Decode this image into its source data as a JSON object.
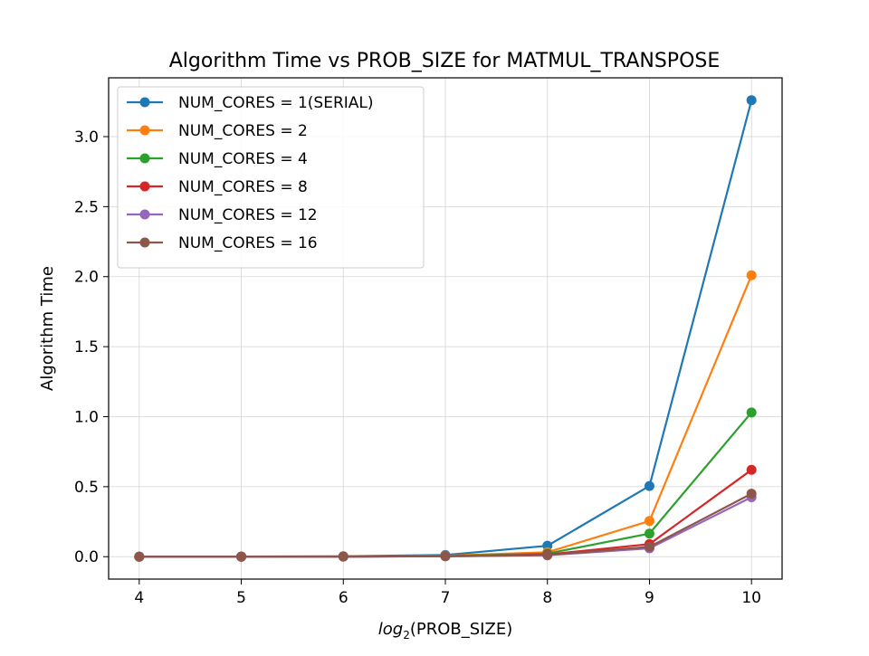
{
  "chart_data": {
    "type": "line",
    "title": "Algorithm Time vs PROB_SIZE for MATMUL_TRANSPOSE",
    "xlabel_base": "log",
    "xlabel_sub": "2",
    "xlabel_rest": "(PROB_SIZE)",
    "ylabel": "Algorithm Time",
    "x": [
      4,
      5,
      6,
      7,
      8,
      9,
      10
    ],
    "xlim": [
      3.7,
      10.3
    ],
    "ylim": [
      -0.16,
      3.42
    ],
    "xticks": [
      4,
      5,
      6,
      7,
      8,
      9,
      10
    ],
    "yticks": [
      0.0,
      0.5,
      1.0,
      1.5,
      2.0,
      2.5,
      3.0
    ],
    "ytick_labels": [
      "0.0",
      "0.5",
      "1.0",
      "1.5",
      "2.0",
      "2.5",
      "3.0"
    ],
    "grid": true,
    "legend_position": "top-left",
    "series": [
      {
        "name": "NUM_CORES = 1(SERIAL)",
        "color": "#1f77b4",
        "values": [
          0.0,
          0.001,
          0.003,
          0.012,
          0.078,
          0.505,
          3.26
        ]
      },
      {
        "name": "NUM_CORES = 2",
        "color": "#ff7f0e",
        "values": [
          0.0,
          0.001,
          0.002,
          0.007,
          0.032,
          0.255,
          2.01
        ]
      },
      {
        "name": "NUM_CORES = 4",
        "color": "#2ca02c",
        "values": [
          0.0,
          0.0,
          0.001,
          0.005,
          0.022,
          0.165,
          1.03
        ]
      },
      {
        "name": "NUM_CORES = 8",
        "color": "#d62728",
        "values": [
          0.0,
          0.0,
          0.001,
          0.004,
          0.016,
          0.09,
          0.62
        ]
      },
      {
        "name": "NUM_CORES = 12",
        "color": "#9467bd",
        "values": [
          0.0,
          0.0,
          0.001,
          0.003,
          0.01,
          0.06,
          0.425
        ]
      },
      {
        "name": "NUM_CORES = 16",
        "color": "#8c564b",
        "values": [
          0.0,
          0.0,
          0.001,
          0.003,
          0.012,
          0.07,
          0.45
        ]
      }
    ]
  }
}
